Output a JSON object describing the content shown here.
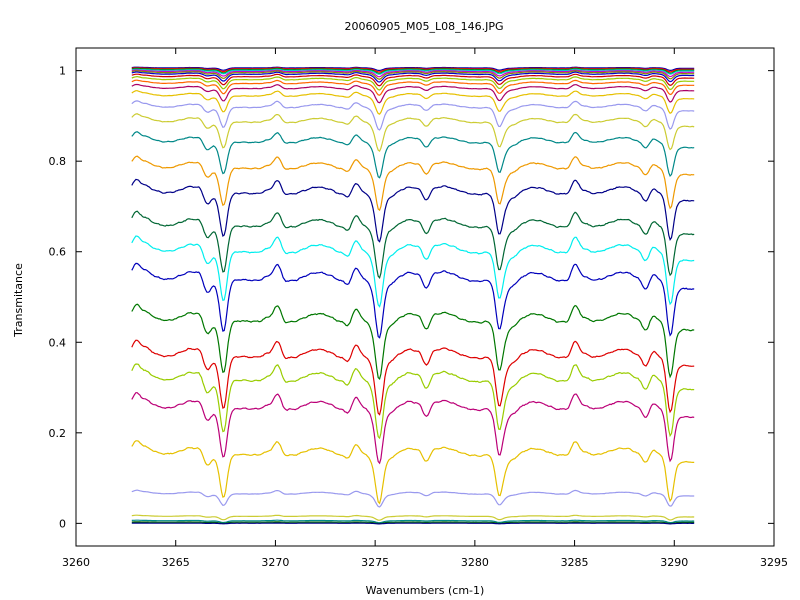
{
  "chart_data": {
    "type": "line",
    "title": "20060905_M05_L08_146.JPG",
    "xlabel": "Wavenumbers (cm-1)",
    "ylabel": "Transmitance",
    "xlim": [
      3260,
      3295
    ],
    "ylim": [
      -0.05,
      1.05
    ],
    "xticks": [
      3260,
      3265,
      3270,
      3275,
      3280,
      3285,
      3290,
      3295
    ],
    "xtick_labels": [
      "3260",
      "3265",
      "3270",
      "3275",
      "3280",
      "3285",
      "3290",
      "3295"
    ],
    "yticks": [
      0,
      0.2,
      0.4,
      0.6,
      0.8,
      1
    ],
    "ytick_labels": [
      "0",
      "0.2",
      "0.4",
      "0.6",
      "0.8",
      "1"
    ],
    "grid": false,
    "x_range": [
      3262.8,
      3291.0
    ],
    "absorption_lines_cm1": [
      3267.4,
      3275.2,
      3281.2,
      3289.8
    ],
    "series": [
      {
        "color": "#0000aa",
        "baseline": 1.005,
        "depth": 0.004
      },
      {
        "color": "#ff0000",
        "baseline": 1.003,
        "depth": 0.005
      },
      {
        "color": "#008800",
        "baseline": 1.001,
        "depth": 0.006
      },
      {
        "color": "#00cccc",
        "baseline": 0.999,
        "depth": 0.006
      },
      {
        "color": "#cc00cc",
        "baseline": 0.996,
        "depth": 0.008
      },
      {
        "color": "#888800",
        "baseline": 0.993,
        "depth": 0.01
      },
      {
        "color": "#0000cc",
        "baseline": 0.989,
        "depth": 0.012
      },
      {
        "color": "#cc0000",
        "baseline": 0.983,
        "depth": 0.014
      },
      {
        "color": "#99cc00",
        "baseline": 0.976,
        "depth": 0.016
      },
      {
        "color": "#ff6600",
        "baseline": 0.967,
        "depth": 0.018
      },
      {
        "color": "#aa0066",
        "baseline": 0.955,
        "depth": 0.022
      },
      {
        "color": "#e6c000",
        "baseline": 0.937,
        "depth": 0.028
      },
      {
        "color": "#9999ee",
        "baseline": 0.91,
        "depth": 0.035
      },
      {
        "color": "#cccc33",
        "baseline": 0.875,
        "depth": 0.045
      },
      {
        "color": "#008888",
        "baseline": 0.828,
        "depth": 0.055
      },
      {
        "color": "#ee9900",
        "baseline": 0.768,
        "depth": 0.065
      },
      {
        "color": "#000088",
        "baseline": 0.71,
        "depth": 0.075
      },
      {
        "color": "#006633",
        "baseline": 0.636,
        "depth": 0.08
      },
      {
        "color": "#00eeee",
        "baseline": 0.578,
        "depth": 0.085
      },
      {
        "color": "#0000bb",
        "baseline": 0.515,
        "depth": 0.09
      },
      {
        "color": "#007700",
        "baseline": 0.424,
        "depth": 0.09
      },
      {
        "color": "#dd0000",
        "baseline": 0.345,
        "depth": 0.09
      },
      {
        "color": "#99cc00",
        "baseline": 0.293,
        "depth": 0.09
      },
      {
        "color": "#bb0077",
        "baseline": 0.232,
        "depth": 0.085
      },
      {
        "color": "#e6c000",
        "baseline": 0.133,
        "depth": 0.075
      },
      {
        "color": "#9999ee",
        "baseline": 0.06,
        "depth": 0.02
      },
      {
        "color": "#cccc33",
        "baseline": 0.014,
        "depth": 0.006
      },
      {
        "color": "#008888",
        "baseline": 0.005,
        "depth": 0.003
      },
      {
        "color": "#006600",
        "baseline": 0.002,
        "depth": 0.002
      },
      {
        "color": "#000088",
        "baseline": 0.0,
        "depth": 0.001
      }
    ]
  }
}
